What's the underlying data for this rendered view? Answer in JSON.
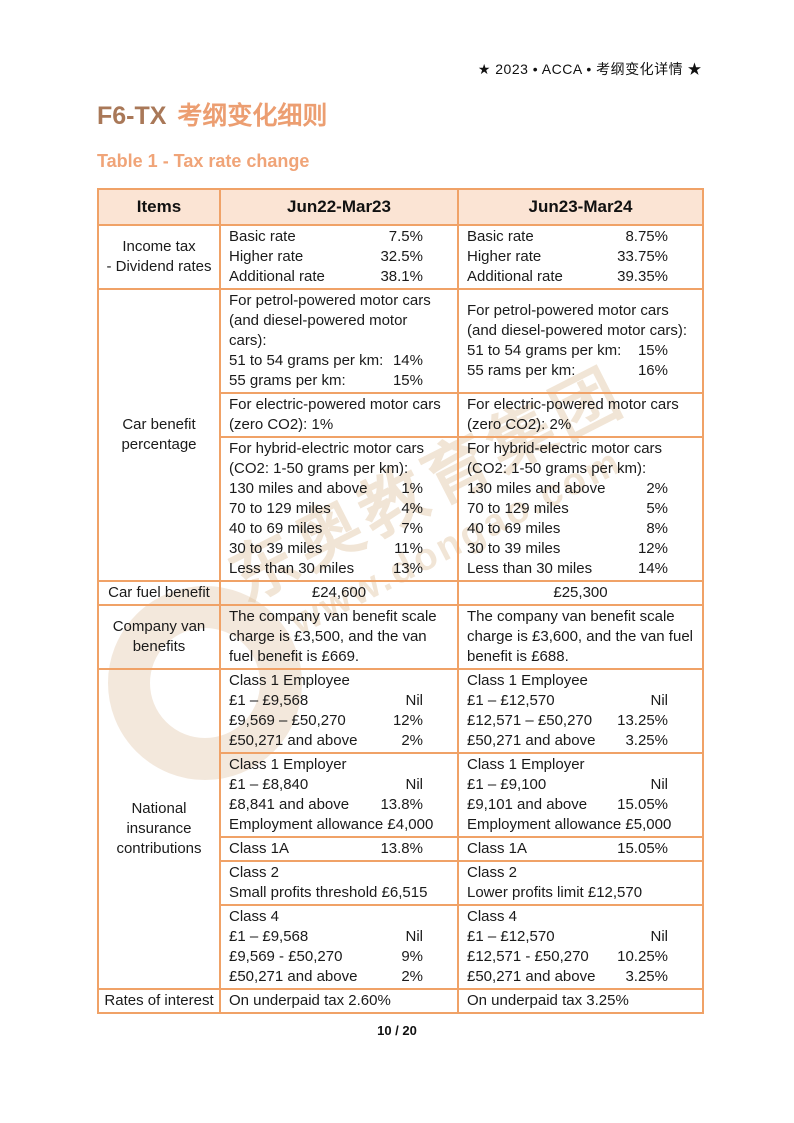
{
  "page_header": "★ 2023 • ACCA • 考纲变化详情 ★",
  "title": {
    "code": "F6-TX",
    "cn": "考纲变化细则"
  },
  "table_title": "Table 1 - Tax rate change",
  "footer": {
    "page": "10 / 20"
  },
  "watermark": {
    "line1": "东奥教育集团",
    "line2": "www.dongao.com"
  },
  "colors": {
    "accent_border": "#F0A267",
    "header_bg": "#FBE4D4",
    "title_code": "#A97858",
    "title_cn": "#EC9E71",
    "subtitle": "#F0A478",
    "body_text": "#1A1A1A",
    "watermark": "#D6B48A"
  },
  "table": {
    "headers": [
      "Items",
      "Jun22-Mar23",
      "Jun23-Mar24"
    ],
    "rows": [
      {
        "item": [
          "Income tax",
          "- Dividend rates"
        ],
        "subrows": [
          {
            "c22": [
              {
                "l": "Basic rate",
                "v": "7.5%"
              },
              {
                "l": "Higher rate",
                "v": "32.5%"
              },
              {
                "l": "Additional rate",
                "v": "38.1%"
              }
            ],
            "c23": [
              {
                "l": "Basic rate",
                "v": "8.75%"
              },
              {
                "l": "Higher rate",
                "v": "33.75%"
              },
              {
                "l": "Additional rate",
                "v": "39.35%"
              }
            ]
          }
        ]
      },
      {
        "item": [
          "Car benefit",
          "percentage"
        ],
        "subrows": [
          {
            "c22": [
              {
                "t": "For petrol-powered motor cars (and diesel-powered motor cars):"
              },
              {
                "l": "51 to 54 grams per km:",
                "v": "14%"
              },
              {
                "l": "55 grams per km:",
                "v": "15%"
              }
            ],
            "c23": [
              {
                "t": "For petrol-powered motor cars (and diesel-powered motor cars):"
              },
              {
                "l": "51 to 54 grams per km:",
                "v": "15%"
              },
              {
                "l": "55 rams per km:",
                "v": "16%"
              }
            ]
          },
          {
            "c22": [
              {
                "t": "For electric-powered motor cars (zero CO2): 1%"
              }
            ],
            "c23": [
              {
                "t": "For electric-powered motor cars (zero CO2): 2%"
              }
            ]
          },
          {
            "c22": [
              {
                "t": "For hybrid-electric motor cars (CO2: 1-50 grams per km):"
              },
              {
                "l": "130 miles and above",
                "v": "1%"
              },
              {
                "l": "70 to 129 miles",
                "v": "4%"
              },
              {
                "l": "40 to 69 miles",
                "v": "7%"
              },
              {
                "l": "30 to 39 miles",
                "v": "11%"
              },
              {
                "l": "Less than 30 miles",
                "v": "13%"
              }
            ],
            "c23": [
              {
                "t": "For hybrid-electric motor cars (CO2: 1-50 grams per km):"
              },
              {
                "l": "130 miles and above",
                "v": "2%"
              },
              {
                "l": "70 to 129 miles",
                "v": "5%"
              },
              {
                "l": "40 to 69 miles",
                "v": "8%"
              },
              {
                "l": "30 to 39 miles",
                "v": "12%"
              },
              {
                "l": "Less than 30 miles",
                "v": "14%"
              }
            ]
          }
        ]
      },
      {
        "item": [
          "Car fuel benefit"
        ],
        "subrows": [
          {
            "c22": [
              {
                "t": "£24,600",
                "center": true
              }
            ],
            "c23": [
              {
                "t": "£25,300",
                "center": true
              }
            ]
          }
        ]
      },
      {
        "item": [
          "Company van",
          "benefits"
        ],
        "subrows": [
          {
            "c22": [
              {
                "t": "The company van benefit scale charge is £3,500, and the van fuel benefit is £669."
              }
            ],
            "c23": [
              {
                "t": "The company van benefit scale charge is £3,600, and the van fuel benefit is £688."
              }
            ]
          }
        ]
      },
      {
        "item": [
          "National",
          "insurance",
          "contributions"
        ],
        "subrows": [
          {
            "c22": [
              {
                "t": "Class 1 Employee"
              },
              {
                "l": "£1 – £9,568",
                "v": "Nil"
              },
              {
                "l": "£9,569 – £50,270",
                "v": "12%"
              },
              {
                "l": "£50,271 and above",
                "v": "2%"
              }
            ],
            "c23": [
              {
                "t": "Class 1 Employee"
              },
              {
                "l": "£1 – £12,570",
                "v": "Nil"
              },
              {
                "l": "£12,571 – £50,270",
                "v": "13.25%"
              },
              {
                "l": "£50,271 and above",
                "v": "3.25%"
              }
            ]
          },
          {
            "c22": [
              {
                "t": "Class 1 Employer"
              },
              {
                "l": "£1 – £8,840",
                "v": "Nil"
              },
              {
                "l": "£8,841 and above",
                "v": "13.8%"
              },
              {
                "t": "Employment allowance £4,000"
              }
            ],
            "c23": [
              {
                "t": "Class 1 Employer"
              },
              {
                "l": "£1 – £9,100",
                "v": "Nil"
              },
              {
                "l": "£9,101 and above",
                "v": "15.05%"
              },
              {
                "t": "Employment allowance £5,000"
              }
            ]
          },
          {
            "c22": [
              {
                "l": "Class 1A",
                "v": "13.8%"
              }
            ],
            "c23": [
              {
                "l": "Class 1A",
                "v": "15.05%"
              }
            ]
          },
          {
            "c22": [
              {
                "t": "Class 2"
              },
              {
                "t": "Small profits threshold £6,515"
              }
            ],
            "c23": [
              {
                "t": "Class 2"
              },
              {
                "t": "Lower profits limit £12,570"
              }
            ]
          },
          {
            "c22": [
              {
                "t": "Class 4"
              },
              {
                "l": "£1 – £9,568",
                "v": "Nil"
              },
              {
                "l": "£9,569 - £50,270",
                "v": "9%"
              },
              {
                "l": "£50,271 and above",
                "v": "2%"
              }
            ],
            "c23": [
              {
                "t": "Class 4"
              },
              {
                "l": "£1 – £12,570",
                "v": "Nil"
              },
              {
                "l": "£12,571 - £50,270",
                "v": "10.25%"
              },
              {
                "l": "£50,271 and above",
                "v": "3.25%"
              }
            ]
          }
        ]
      },
      {
        "item": [
          "Rates of interest"
        ],
        "subrows": [
          {
            "c22": [
              {
                "t": "On underpaid tax 2.60%"
              }
            ],
            "c23": [
              {
                "t": "On underpaid tax 3.25%"
              }
            ]
          }
        ]
      }
    ]
  }
}
